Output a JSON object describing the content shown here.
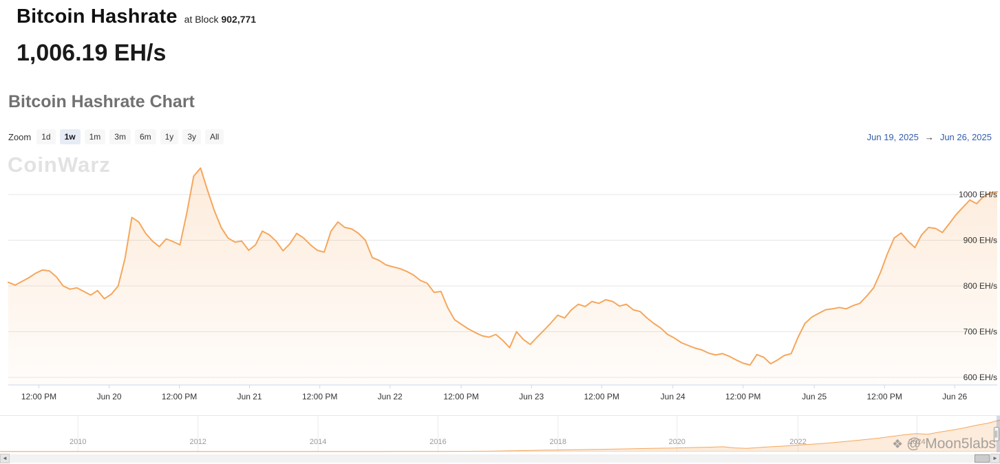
{
  "header": {
    "title": "Bitcoin Hashrate",
    "at_block_label": "at Block",
    "block_number": "902,771",
    "current_value": "1,006.19 EH/s"
  },
  "chart": {
    "heading": "Bitcoin Hashrate Chart",
    "zoom_label": "Zoom",
    "zoom_buttons": [
      "1d",
      "1w",
      "1m",
      "3m",
      "6m",
      "1y",
      "3y",
      "All"
    ],
    "zoom_selected": "1w",
    "range_from": "Jun 19, 2025",
    "range_arrow": "→",
    "range_to": "Jun 26, 2025"
  },
  "watermarks": {
    "chart_logo": "CoinWarz",
    "credit_icon": "❖",
    "credit": "@ Moon5labs"
  },
  "chart_data": {
    "type": "area",
    "title": "Bitcoin Hashrate Chart",
    "series_name": "Bitcoin Hashrate",
    "unit": "EH/s",
    "xlabel": "",
    "ylabel": "EH/s",
    "x_range": [
      "Jun 19, 2025 ~07:00",
      "Jun 26, 2025"
    ],
    "ylim": [
      583,
      1097
    ],
    "grid": "horizontal",
    "legend": "none",
    "y_ticks": [
      {
        "value": 600,
        "label": "600 EH/s"
      },
      {
        "value": 700,
        "label": "700 EH/s"
      },
      {
        "value": 800,
        "label": "800 EH/s"
      },
      {
        "value": 900,
        "label": "900 EH/s"
      },
      {
        "value": 1000,
        "label": "1000 EH/s"
      }
    ],
    "x_ticks": [
      {
        "pos": 0.031,
        "label": "12:00 PM"
      },
      {
        "pos": 0.102,
        "label": "Jun 20"
      },
      {
        "pos": 0.173,
        "label": "12:00 PM"
      },
      {
        "pos": 0.244,
        "label": "Jun 21"
      },
      {
        "pos": 0.315,
        "label": "12:00 PM"
      },
      {
        "pos": 0.386,
        "label": "Jun 22"
      },
      {
        "pos": 0.458,
        "label": "12:00 PM"
      },
      {
        "pos": 0.529,
        "label": "Jun 23"
      },
      {
        "pos": 0.6,
        "label": "12:00 PM"
      },
      {
        "pos": 0.672,
        "label": "Jun 24"
      },
      {
        "pos": 0.743,
        "label": "12:00 PM"
      },
      {
        "pos": 0.815,
        "label": "Jun 25"
      },
      {
        "pos": 0.886,
        "label": "12:00 PM"
      },
      {
        "pos": 0.957,
        "label": "Jun 26"
      }
    ],
    "values": [
      808,
      802,
      810,
      818,
      828,
      835,
      833,
      820,
      800,
      793,
      796,
      788,
      780,
      790,
      772,
      782,
      800,
      860,
      950,
      940,
      915,
      898,
      886,
      903,
      897,
      890,
      960,
      1040,
      1058,
      1010,
      965,
      928,
      905,
      896,
      898,
      878,
      890,
      920,
      912,
      898,
      877,
      892,
      915,
      905,
      890,
      878,
      874,
      920,
      940,
      928,
      925,
      915,
      900,
      862,
      856,
      846,
      842,
      838,
      832,
      824,
      812,
      806,
      786,
      788,
      752,
      726,
      716,
      706,
      698,
      691,
      688,
      694,
      681,
      665,
      700,
      683,
      672,
      688,
      703,
      719,
      736,
      730,
      748,
      760,
      755,
      766,
      762,
      770,
      766,
      756,
      760,
      748,
      744,
      730,
      718,
      708,
      694,
      686,
      676,
      670,
      664,
      660,
      653,
      649,
      652,
      646,
      638,
      631,
      627,
      650,
      644,
      630,
      638,
      648,
      652,
      688,
      718,
      732,
      740,
      748,
      750,
      753,
      750,
      757,
      762,
      778,
      796,
      830,
      870,
      905,
      916,
      898,
      884,
      912,
      928,
      926,
      917,
      936,
      956,
      972,
      988,
      980,
      996,
      1004,
      1006
    ],
    "navigator": {
      "x_ticks": [
        {
          "pos": 0.078,
          "label": "2010"
        },
        {
          "pos": 0.198,
          "label": "2012"
        },
        {
          "pos": 0.318,
          "label": "2014"
        },
        {
          "pos": 0.438,
          "label": "2016"
        },
        {
          "pos": 0.558,
          "label": "2018"
        },
        {
          "pos": 0.677,
          "label": "2020"
        },
        {
          "pos": 0.798,
          "label": "2022"
        },
        {
          "pos": 0.917,
          "label": "2024"
        }
      ],
      "values_norm": [
        0.002,
        0.002,
        0.002,
        0.002,
        0.002,
        0.002,
        0.002,
        0.002,
        0.002,
        0.002,
        0.002,
        0.002,
        0.002,
        0.002,
        0.002,
        0.002,
        0.002,
        0.002,
        0.002,
        0.002,
        0.002,
        0.002,
        0.002,
        0.002,
        0.002,
        0.002,
        0.002,
        0.002,
        0.002,
        0.002,
        0.002,
        0.003,
        0.003,
        0.004,
        0.004,
        0.005,
        0.006,
        0.007,
        0.009,
        0.011,
        0.013,
        0.018,
        0.024,
        0.03,
        0.038,
        0.045,
        0.05,
        0.056,
        0.062,
        0.068,
        0.073,
        0.08,
        0.088,
        0.095,
        0.102,
        0.108,
        0.115,
        0.123,
        0.132,
        0.142,
        0.155,
        0.118,
        0.102,
        0.13,
        0.155,
        0.175,
        0.2,
        0.225,
        0.25,
        0.28,
        0.315,
        0.35,
        0.39,
        0.43,
        0.48,
        0.53,
        0.57,
        0.55,
        0.62,
        0.68,
        0.75,
        0.83,
        0.9,
        1.0
      ],
      "selected_range": [
        0.9965,
        1.0
      ]
    },
    "colors": {
      "line": "#f5a65b",
      "fill": "#f5a65b",
      "grid": "#e6e6e6",
      "axis": "#ccd6eb",
      "label": "#333333",
      "nav_label": "#999999",
      "mask": "rgba(102,133,194,0.3)"
    }
  }
}
